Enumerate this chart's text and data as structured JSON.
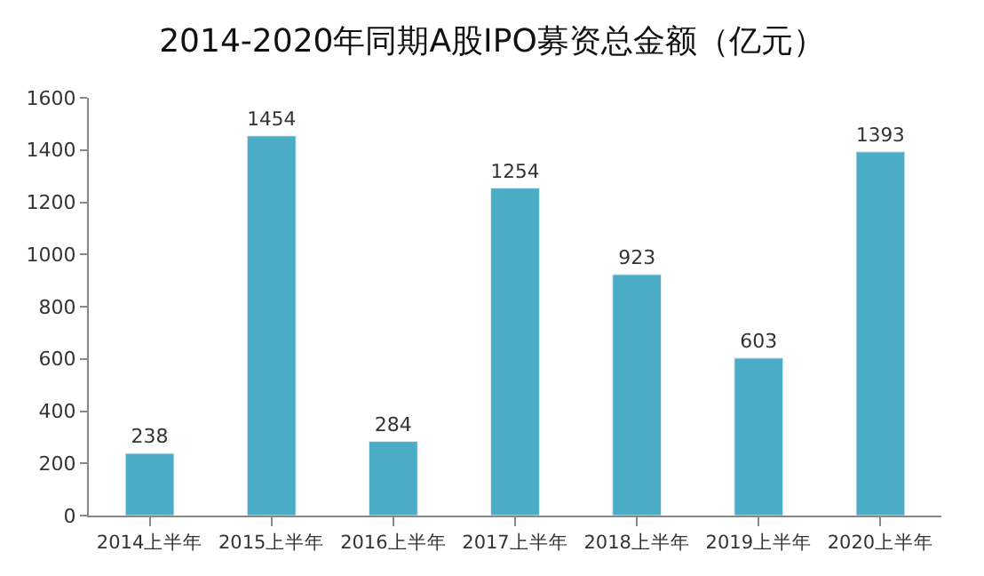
{
  "chart_data": {
    "type": "bar",
    "title": "2014-2020年同期A股IPO募资总金额（亿元）",
    "categories": [
      "2014上半年",
      "2015上半年",
      "2016上半年",
      "2017上半年",
      "2018上半年",
      "2019上半年",
      "2020上半年"
    ],
    "values": [
      238,
      1454,
      284,
      1254,
      923,
      603,
      1393
    ],
    "color": "#4bacc6",
    "ylim": [
      0,
      1600
    ],
    "yticks": [
      0,
      200,
      400,
      600,
      800,
      1000,
      1200,
      1400,
      1600
    ],
    "data_labels": true
  }
}
